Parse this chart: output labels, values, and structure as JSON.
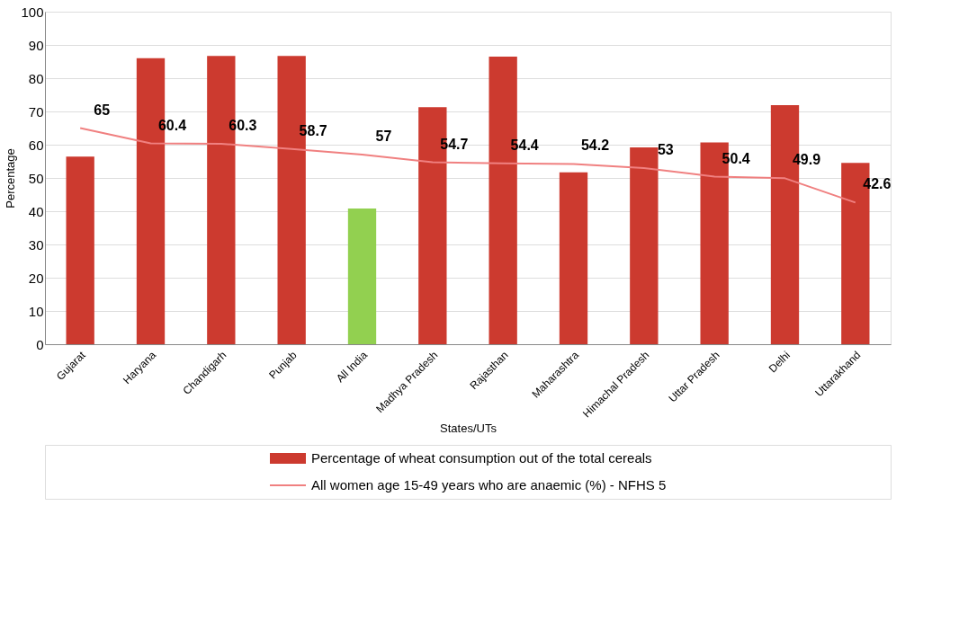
{
  "chart_data": {
    "type": "bar",
    "xlabel": "States/UTs",
    "ylabel": "Percentage",
    "categories": [
      "Gujarat",
      "Haryana",
      "Chandigarh",
      "Punjab",
      "All India",
      "Madhya Pradesh",
      "Rajasthan",
      "Maharashtra",
      "Himachal Pradesh",
      "Uttar Pradesh",
      "Delhi",
      "Uttarakhand"
    ],
    "series": [
      {
        "name": "Percentage  of wheat consumption out of the total cereals",
        "color": "#cc3a2f",
        "colors": [
          "#cc3a2f",
          "#cc3a2f",
          "#cc3a2f",
          "#cc3a2f",
          "#92d050",
          "#cc3a2f",
          "#cc3a2f",
          "#cc3a2f",
          "#cc3a2f",
          "#cc3a2f",
          "#cc3a2f",
          "#cc3a2f"
        ],
        "values": [
          56.4,
          86,
          86.7,
          86.7,
          40.8,
          71.3,
          86.5,
          51.7,
          59.2,
          60.7,
          71.9,
          54.5
        ]
      },
      {
        "name": "All women age 15-49 years who are anaemic (%) - NFHS 5",
        "type": "line",
        "color": "#f08080",
        "values": [
          65,
          60.4,
          60.3,
          58.7,
          57,
          54.7,
          54.4,
          54.2,
          53,
          50.4,
          49.9,
          42.6
        ],
        "data_labels": true
      }
    ],
    "ylim": [
      0,
      100
    ],
    "yticks": [
      0,
      10,
      20,
      30,
      40,
      50,
      60,
      70,
      80,
      90,
      100
    ],
    "grid": "y",
    "legend": "bottom"
  }
}
